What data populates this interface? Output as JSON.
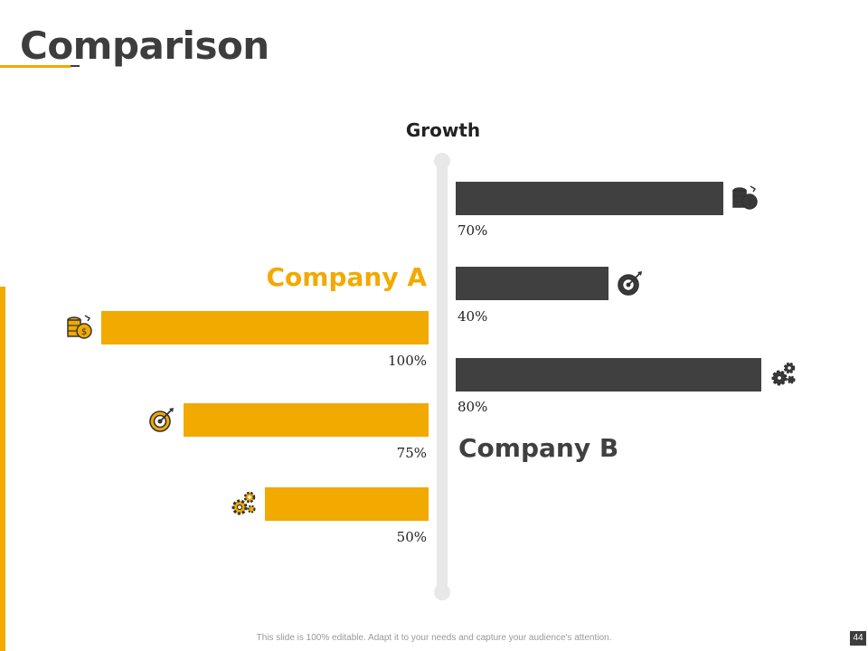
{
  "slide": {
    "title": "Comparison",
    "footer": "This slide is 100% editable. Adapt it to your needs and capture your audience's attention.",
    "page_number": "44"
  },
  "colors": {
    "company_a": "#f2a900",
    "company_b": "#404040",
    "title": "#3d3d3d"
  },
  "chart_data": {
    "type": "bar",
    "orientation": "horizontal",
    "title": "Growth",
    "categories": [
      "coins",
      "target",
      "gears"
    ],
    "category_icons": [
      "coins-icon",
      "target-icon",
      "gears-icon"
    ],
    "series": [
      {
        "name": "Company A",
        "values": [
          100,
          75,
          50
        ],
        "labels": [
          "100%",
          "75%",
          "50%"
        ],
        "color": "#f2a900",
        "direction": "left"
      },
      {
        "name": "Company B",
        "values": [
          70,
          40,
          80
        ],
        "labels": [
          "70%",
          "40%",
          "80%"
        ],
        "color": "#404040",
        "direction": "right"
      }
    ],
    "xlim": [
      0,
      100
    ],
    "grid": false
  }
}
